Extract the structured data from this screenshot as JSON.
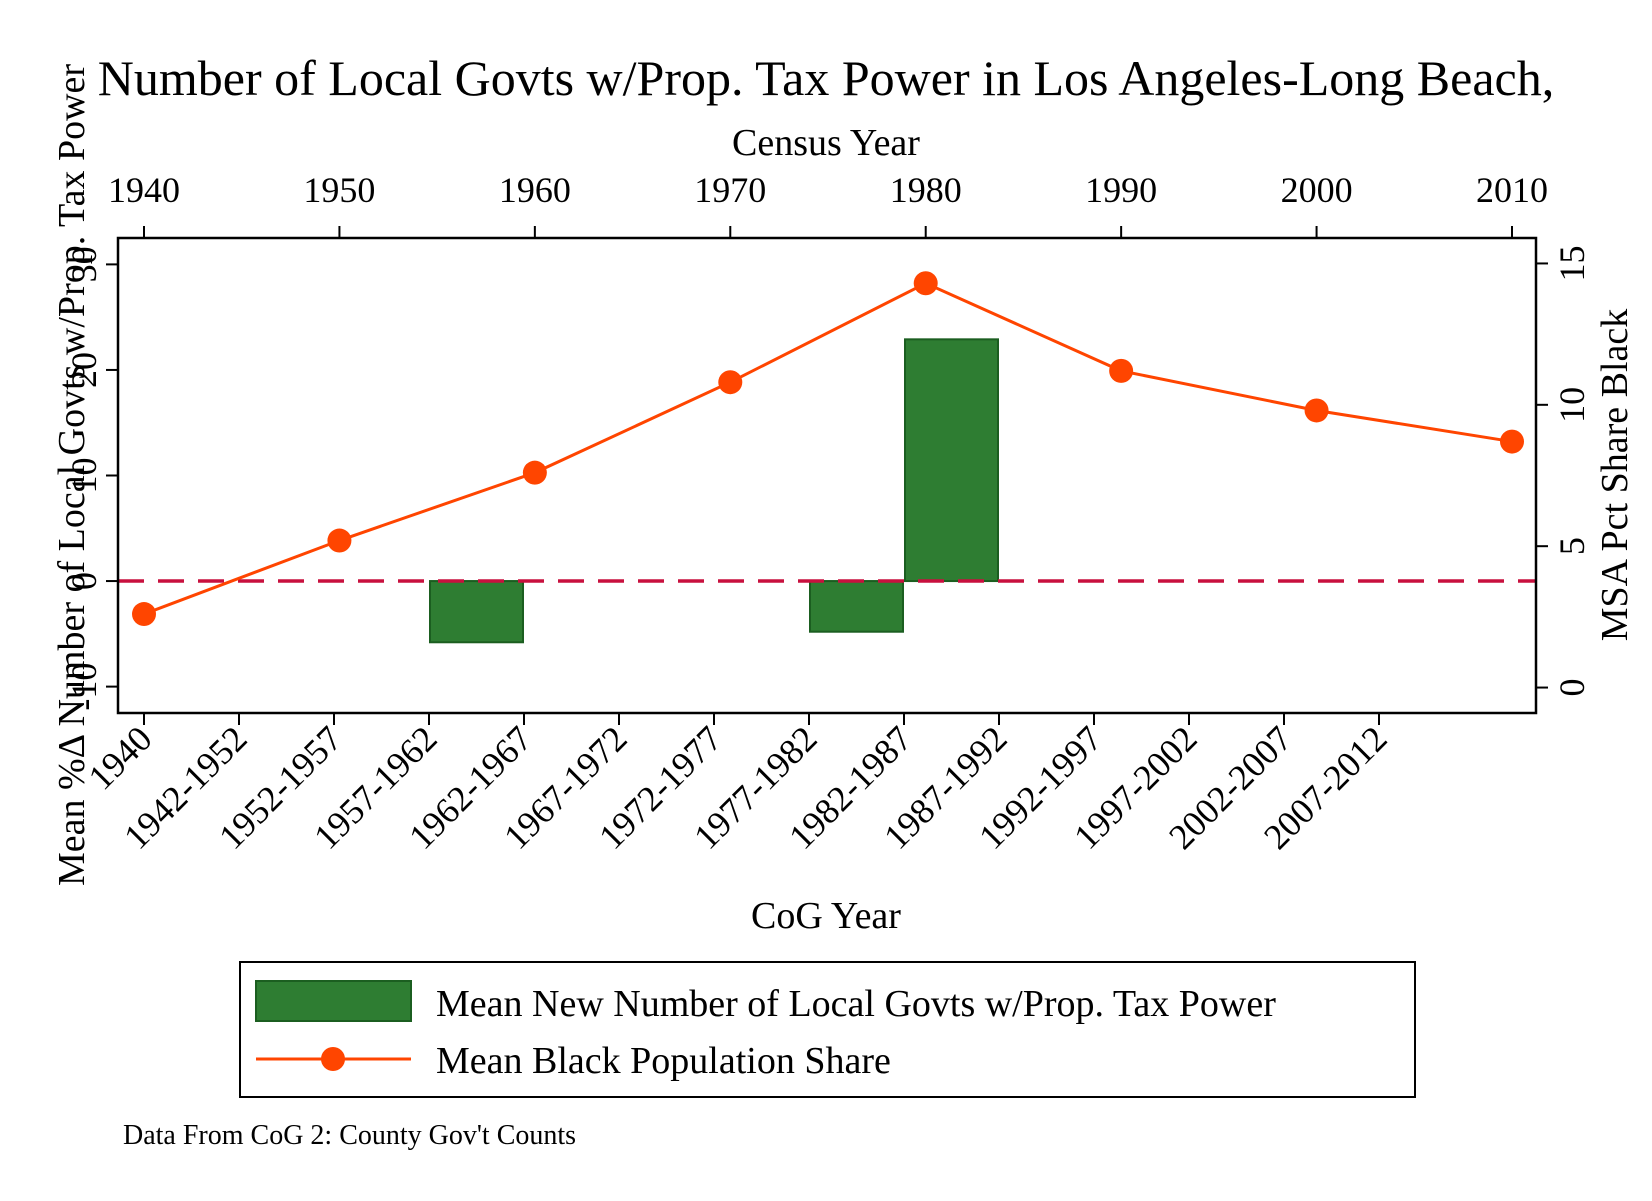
{
  "chart_data": {
    "type": "bar+line",
    "title": "Number of Local Govts w/Prop. Tax Power in Los Angeles-Long Beach,",
    "note": "Data From CoG 2: County Gov't Counts",
    "grid": false,
    "legend_position": "bottom",
    "bottom_axis": {
      "title": "CoG Year",
      "categories": [
        "1940",
        "1942-1952",
        "1952-1957",
        "1957-1962",
        "1962-1967",
        "1967-1972",
        "1972-1977",
        "1977-1982",
        "1982-1987",
        "1987-1992",
        "1992-1997",
        "1997-2002",
        "2002-2007",
        "2007-2012"
      ]
    },
    "top_axis": {
      "title": "Census Year",
      "ticks": [
        1940,
        1950,
        1960,
        1970,
        1980,
        1990,
        2000,
        2010
      ],
      "range": [
        1940,
        2010
      ]
    },
    "left_axis": {
      "title": "Mean %Δ Number of Local Govts w/Prop. Tax Power",
      "ticks": [
        -10,
        0,
        10,
        20,
        30
      ],
      "range": [
        -12.5,
        32.5
      ]
    },
    "right_axis": {
      "title": "MSA Pct Share Black",
      "ticks": [
        0,
        5,
        10,
        15
      ],
      "range": [
        -0.9,
        15.9
      ]
    },
    "bars": {
      "name": "Mean New Number of Local Govts w/Prop. Tax Power",
      "color": "#2e7d32",
      "edge_color": "#1b5e20",
      "values": [
        {
          "category": "1962-1967",
          "value": -5.8
        },
        {
          "category": "1982-1987",
          "value": -4.8
        },
        {
          "category": "1987-1992",
          "value": 22.9
        }
      ]
    },
    "line": {
      "name": "Mean Black Population Share",
      "color": "#ff4500",
      "points": [
        {
          "x": 1940,
          "y": 2.6
        },
        {
          "x": 1950,
          "y": 5.2
        },
        {
          "x": 1960,
          "y": 7.6
        },
        {
          "x": 1970,
          "y": 10.8
        },
        {
          "x": 1980,
          "y": 14.3
        },
        {
          "x": 1990,
          "y": 11.2
        },
        {
          "x": 2000,
          "y": 9.8
        },
        {
          "x": 2010,
          "y": 8.7
        }
      ]
    },
    "reference_line": {
      "axis": "left",
      "value": 0,
      "color": "#c8103e",
      "style": "dashed"
    }
  }
}
